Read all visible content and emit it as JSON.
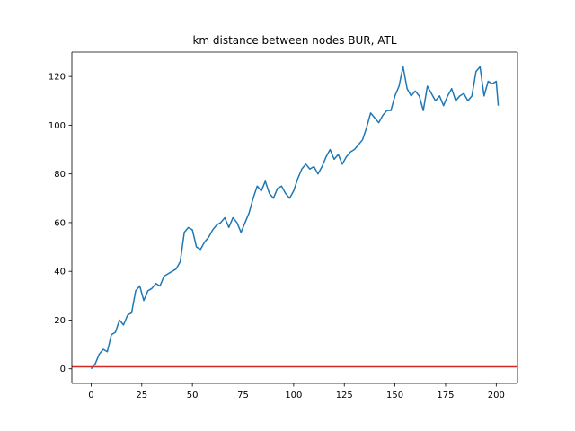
{
  "chart_data": {
    "type": "line",
    "title": "km distance between nodes BUR, ATL",
    "xlabel": "",
    "ylabel": "",
    "xlim": [
      -9.5,
      210.5
    ],
    "ylim": [
      -6,
      130
    ],
    "xticks": [
      0,
      25,
      50,
      75,
      100,
      125,
      150,
      175,
      200
    ],
    "yticks": [
      0,
      20,
      40,
      60,
      80,
      100,
      120
    ],
    "grid": false,
    "series": [
      {
        "color": "#1f77b4",
        "x": [
          0,
          2,
          4,
          6,
          8,
          10,
          12,
          14,
          16,
          18,
          20,
          22,
          24,
          26,
          28,
          30,
          32,
          34,
          36,
          38,
          40,
          42,
          44,
          46,
          48,
          50,
          52,
          54,
          56,
          58,
          60,
          62,
          64,
          66,
          68,
          70,
          72,
          74,
          76,
          78,
          80,
          82,
          84,
          86,
          88,
          90,
          92,
          94,
          96,
          98,
          100,
          102,
          104,
          106,
          108,
          110,
          112,
          114,
          116,
          118,
          120,
          122,
          124,
          126,
          128,
          130,
          132,
          134,
          136,
          138,
          140,
          142,
          144,
          146,
          148,
          150,
          152,
          154,
          156,
          158,
          160,
          162,
          164,
          166,
          168,
          170,
          172,
          174,
          176,
          178,
          180,
          182,
          184,
          186,
          188,
          190,
          192,
          194,
          196,
          198,
          200,
          201
        ],
        "values": [
          0,
          2,
          6,
          8,
          7,
          14,
          15,
          20,
          18,
          22,
          23,
          32,
          34,
          28,
          32,
          33,
          35,
          34,
          38,
          39,
          40,
          41,
          44,
          56,
          58,
          57,
          50,
          49,
          52,
          54,
          57,
          59,
          60,
          62,
          58,
          62,
          60,
          56,
          60,
          64,
          70,
          75,
          73,
          77,
          72,
          70,
          74,
          75,
          72,
          70,
          73,
          78,
          82,
          84,
          82,
          83,
          80,
          83,
          87,
          90,
          86,
          88,
          84,
          87,
          89,
          90,
          92,
          94,
          99,
          105,
          103,
          101,
          104,
          106,
          106,
          112,
          116,
          124,
          115,
          112,
          114,
          112,
          106,
          116,
          113,
          110,
          112,
          108,
          112,
          115,
          110,
          112,
          113,
          110,
          112,
          122,
          124,
          112,
          118,
          117,
          118,
          108
        ]
      }
    ],
    "reference_lines": [
      {
        "type": "horizontal",
        "y": 0.8,
        "color": "#d62728"
      }
    ]
  }
}
